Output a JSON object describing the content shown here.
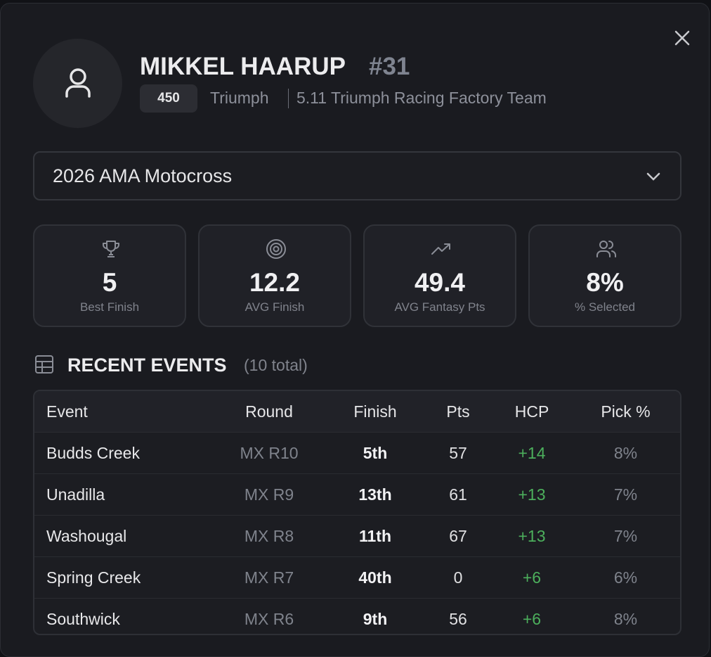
{
  "header": {
    "name": "MIKKEL HAARUP",
    "number": "#31",
    "class": "450",
    "brand": "Triumph",
    "team": "5.11 Triumph Racing Factory Team"
  },
  "series_select": "2026 AMA Motocross",
  "stats": [
    {
      "value": "5",
      "label": "Best Finish"
    },
    {
      "value": "12.2",
      "label": "AVG Finish"
    },
    {
      "value": "49.4",
      "label": "AVG Fantasy Pts"
    },
    {
      "value": "8%",
      "label": "% Selected"
    }
  ],
  "recent": {
    "title": "RECENT EVENTS",
    "count": "(10 total)"
  },
  "table": {
    "columns": [
      "Event",
      "Round",
      "Finish",
      "Pts",
      "HCP",
      "Pick %"
    ],
    "rows": [
      [
        "Budds Creek",
        "MX R10",
        "5th",
        "57",
        "+14",
        "8%"
      ],
      [
        "Unadilla",
        "MX R9",
        "13th",
        "61",
        "+13",
        "7%"
      ],
      [
        "Washougal",
        "MX R8",
        "11th",
        "67",
        "+13",
        "7%"
      ],
      [
        "Spring Creek",
        "MX R7",
        "40th",
        "0",
        "+6",
        "6%"
      ],
      [
        "Southwick",
        "MX R6",
        "9th",
        "56",
        "+6",
        "8%"
      ]
    ]
  }
}
